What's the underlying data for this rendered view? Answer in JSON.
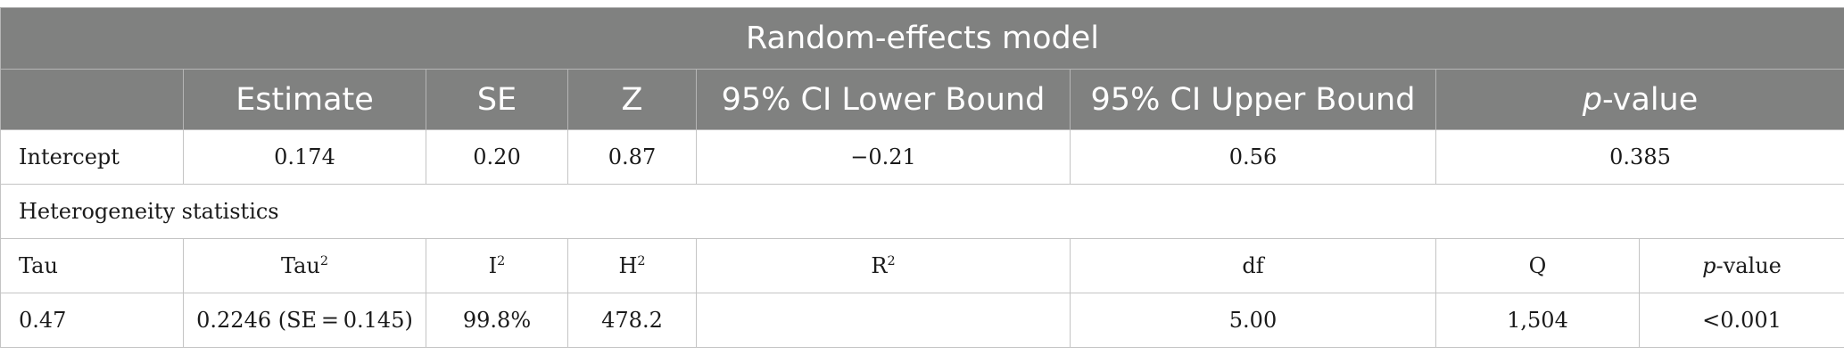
{
  "table": {
    "title": "Random-effects model",
    "columns": {
      "estimate": "Estimate",
      "se": "SE",
      "z": "Z",
      "ci_lower": "95% CI Lower Bound",
      "ci_upper": "95% CI Upper Bound",
      "p_prefix": "p",
      "p_suffix": "-value"
    },
    "intercept_row": {
      "label": "Intercept",
      "estimate": "0.174",
      "se": "0.20",
      "z": "0.87",
      "ci_lower": "−0.21",
      "ci_upper": "0.56",
      "p": "0.385"
    },
    "section_label": "Heterogeneity statistics",
    "het_header": {
      "tau": "Tau",
      "tau2_base": "Tau",
      "i2_base": "I",
      "h2_base": "H",
      "r2_base": "R",
      "exp": "2",
      "df": "df",
      "q": "Q",
      "p_prefix": "p",
      "p_suffix": "-value"
    },
    "het_values": {
      "tau": "0.47",
      "tau2": "0.2246 (SE = 0.145)",
      "i2": "99.8%",
      "h2": "478.2",
      "r2": "",
      "df": "5.00",
      "q": "1,504",
      "p": "<0.001"
    }
  }
}
